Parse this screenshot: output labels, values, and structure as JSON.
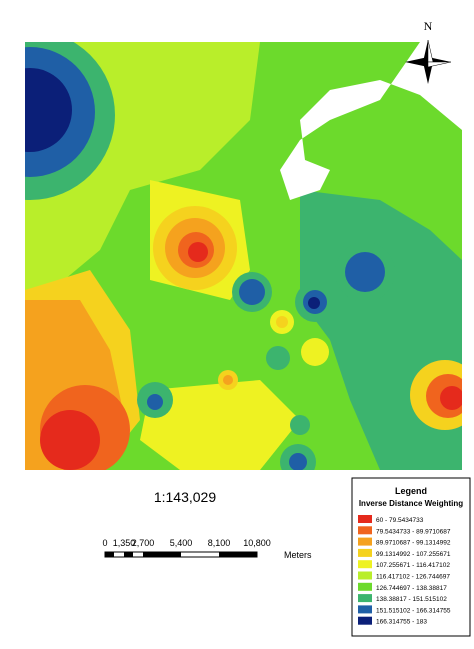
{
  "north_arrow": {
    "label": "N"
  },
  "scale": {
    "ratio": "1:143,029",
    "ticks": [
      "0",
      "1,350",
      "2,700",
      "5,400",
      "8,100",
      "10,800"
    ],
    "unit": "Meters"
  },
  "legend": {
    "title": "Legend",
    "subtitle": "Inverse Distance Weighting",
    "items": [
      {
        "label": "60 - 79.5434733",
        "color": "#e52a1c"
      },
      {
        "label": "79.5434733 - 89.9710687",
        "color": "#f0641e"
      },
      {
        "label": "89.9710687 - 99.1314992",
        "color": "#f5a21e"
      },
      {
        "label": "99.1314992 - 107.255671",
        "color": "#f5d21e"
      },
      {
        "label": "107.255671 - 116.417102",
        "color": "#eef222"
      },
      {
        "label": "116.417102 - 126.744697",
        "color": "#b9ee2a"
      },
      {
        "label": "126.744697 - 138.38817",
        "color": "#6cda2c"
      },
      {
        "label": "138.38817 - 151.515102",
        "color": "#3cb46e"
      },
      {
        "label": "151.515102 - 166.314755",
        "color": "#1f5fa6"
      },
      {
        "label": "166.314755 - 183",
        "color": "#0b1f78"
      }
    ]
  }
}
